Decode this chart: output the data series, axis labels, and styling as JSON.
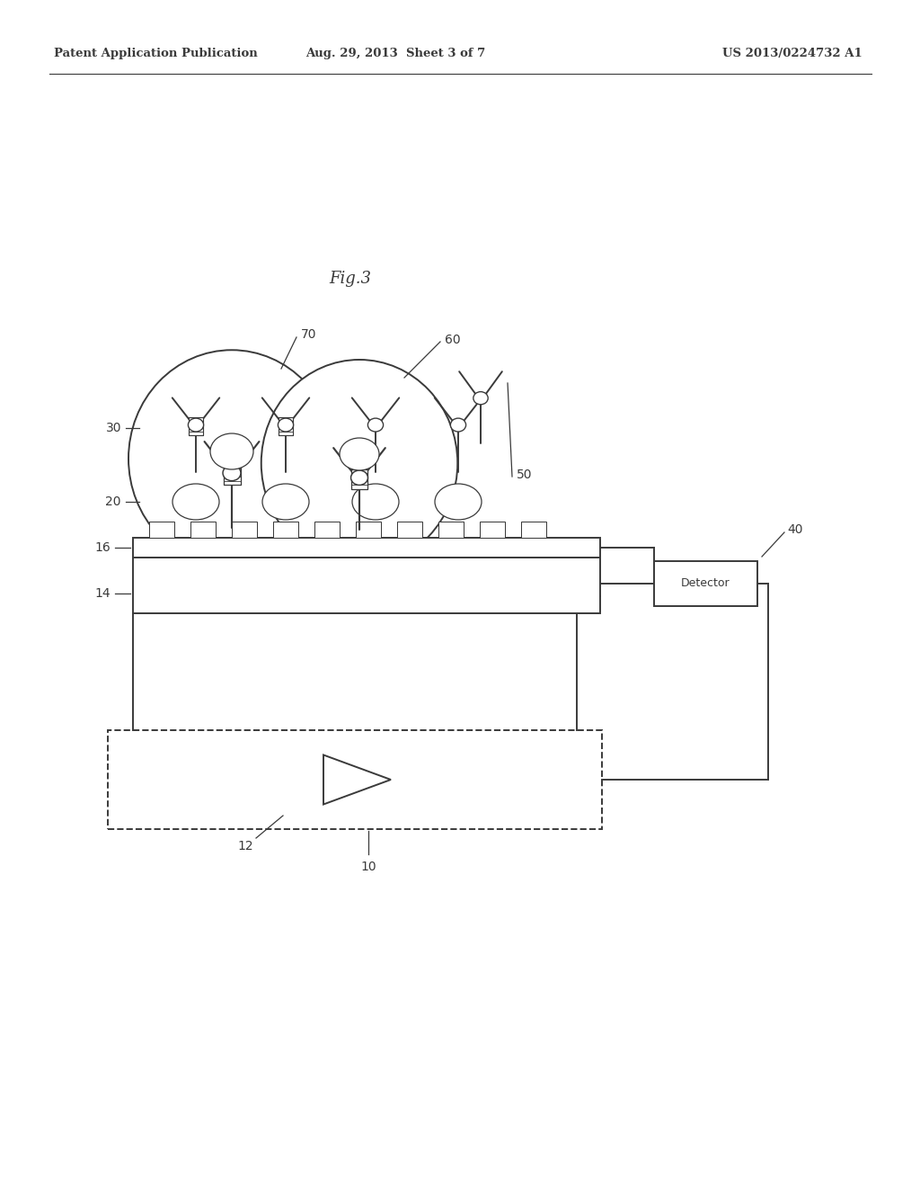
{
  "bg_color": "#ffffff",
  "line_color": "#3a3a3a",
  "header_left": "Patent Application Publication",
  "header_mid": "Aug. 29, 2013  Sheet 3 of 7",
  "header_right": "US 2013/0224732 A1",
  "fig_label": "Fig.3",
  "detector_label": "Detector"
}
